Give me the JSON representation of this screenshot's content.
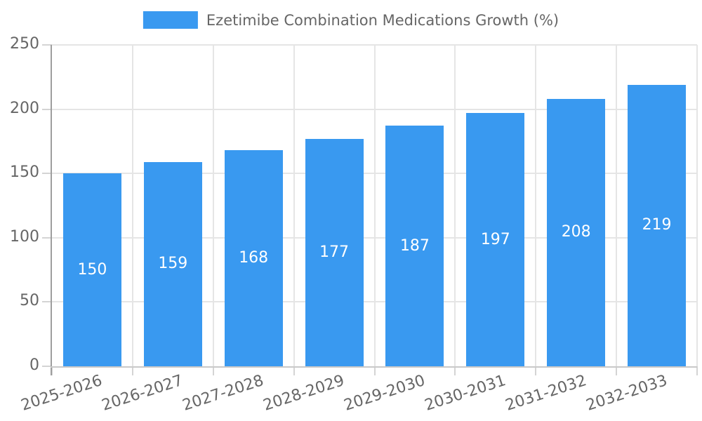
{
  "legend": {
    "label": "Ezetimibe Combination Medications Growth (%)"
  },
  "chart_data": {
    "type": "bar",
    "title": "Ezetimibe Combination Medications Growth (%)",
    "categories": [
      "2025-2026",
      "2026-2027",
      "2027-2028",
      "2028-2029",
      "2029-2030",
      "2030-2031",
      "2031-2032",
      "2032-2033"
    ],
    "values": [
      150,
      159,
      168,
      177,
      187,
      197,
      208,
      219
    ],
    "value_labels": [
      "150",
      "159",
      "168",
      "177",
      "187",
      "197",
      "208",
      "219"
    ],
    "ytick_labels": [
      "0",
      "50",
      "100",
      "150",
      "200",
      "250"
    ],
    "yticks": [
      0,
      50,
      100,
      150,
      200,
      250
    ],
    "xlabel": "",
    "ylabel": "",
    "ylim": [
      0,
      250
    ],
    "grid": true,
    "legend_position": "top-center",
    "x_label_rotation_deg": -18
  },
  "colors": {
    "bar": "#3999F0",
    "grid": "#E5E5E5",
    "axis_y": "#9E9E9E",
    "axis_x": "#C9C9C9",
    "tick": "#D4D4D4",
    "text": "#666666",
    "value_label": "#FFFFFF",
    "background": "#FFFFFF"
  }
}
